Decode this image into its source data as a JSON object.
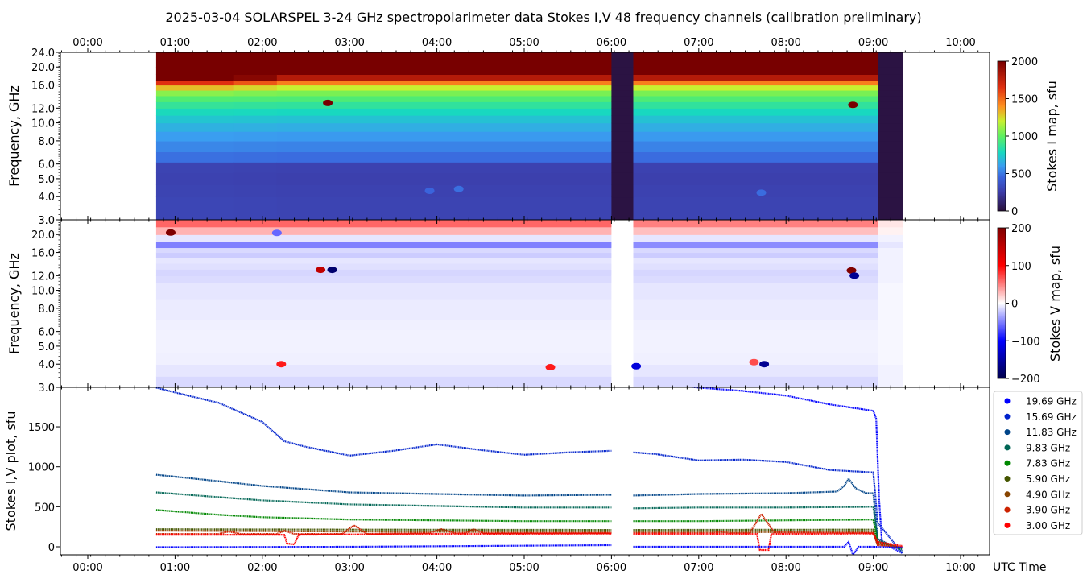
{
  "title": "2025-03-04  SOLARSPEL  3-24 GHz spectropolarimeter data   Stokes I,V   48 frequency channels   (calibration preliminary)",
  "time_axis": {
    "ticks": [
      "00:00",
      "01:00",
      "02:00",
      "03:00",
      "04:00",
      "05:00",
      "06:00",
      "07:00",
      "08:00",
      "09:00",
      "10:00"
    ],
    "label": "UTC Time",
    "range_hours": [
      -0.31,
      10.33
    ]
  },
  "chart_data": [
    {
      "type": "heatmap",
      "id": "stokes_i_map",
      "ylabel": "Frequency, GHz",
      "yscale": "log",
      "ylim": [
        3.0,
        24.0
      ],
      "yticks": [
        "3.0",
        "4.0",
        "5.0",
        "6.0",
        "8.0",
        "10.0",
        "12.0",
        "16.0",
        "20.0",
        "24.0"
      ],
      "colorbar": {
        "label": "Stokes I map, sfu",
        "range": [
          0,
          2000
        ],
        "ticks": [
          "0",
          "500",
          "1000",
          "1500",
          "2000"
        ]
      },
      "frequencies_ghz": [
        3.2,
        3.7,
        4.3,
        5.0,
        5.8,
        6.5,
        7.5,
        8.5,
        9.5,
        10.5,
        11.5,
        12.5,
        13.5,
        14.5,
        15.5,
        16.5,
        17.5,
        19.0,
        21.0,
        23.0
      ],
      "columns": [
        {
          "start": "00:47",
          "values": [
            300,
            300,
            290,
            280,
            290,
            480,
            540,
            600,
            660,
            720,
            790,
            870,
            960,
            1080,
            1300,
            1650,
            2000,
            2000,
            2000,
            2000
          ]
        },
        {
          "start": "01:40",
          "values": [
            295,
            295,
            285,
            275,
            285,
            475,
            535,
            595,
            655,
            715,
            785,
            865,
            955,
            1060,
            1250,
            1550,
            1950,
            2000,
            2000,
            2000
          ]
        },
        {
          "start": "02:10",
          "values": [
            290,
            290,
            280,
            270,
            280,
            470,
            530,
            590,
            650,
            710,
            780,
            860,
            950,
            1050,
            1200,
            1450,
            1800,
            2000,
            2000,
            2000
          ]
        },
        {
          "start": "06:00",
          "values": [
            20,
            20,
            20,
            20,
            20,
            20,
            20,
            20,
            20,
            20,
            20,
            20,
            20,
            20,
            20,
            20,
            20,
            20,
            20,
            20
          ]
        },
        {
          "start": "06:15",
          "values": [
            290,
            290,
            280,
            270,
            280,
            470,
            530,
            590,
            650,
            710,
            780,
            860,
            950,
            1050,
            1200,
            1450,
            1800,
            2000,
            2000,
            2000
          ]
        },
        {
          "start": "09:03",
          "values": [
            20,
            20,
            20,
            20,
            20,
            20,
            20,
            20,
            20,
            20,
            20,
            20,
            20,
            20,
            20,
            20,
            20,
            20,
            20,
            20
          ]
        }
      ],
      "end": "09:20",
      "features": [
        {
          "time": "02:45",
          "freq_ghz": 12.8,
          "value": 2000
        },
        {
          "time": "08:46",
          "freq_ghz": 12.5,
          "value": 2000
        },
        {
          "time": "04:15",
          "freq_ghz": 4.4,
          "value": 480
        },
        {
          "time": "03:55",
          "freq_ghz": 4.3,
          "value": 450
        },
        {
          "time": "07:43",
          "freq_ghz": 4.2,
          "value": 470
        }
      ]
    },
    {
      "type": "heatmap",
      "id": "stokes_v_map",
      "ylabel": "Frequency, GHz",
      "yscale": "log",
      "ylim": [
        3.0,
        24.0
      ],
      "yticks": [
        "3.0",
        "4.0",
        "5.0",
        "6.0",
        "8.0",
        "10.0",
        "12.0",
        "16.0",
        "20.0"
      ],
      "colorbar": {
        "label": "Stokes V map, sfu",
        "range": [
          -200,
          200
        ],
        "ticks": [
          "−200",
          "−100",
          "0",
          "100",
          "200"
        ]
      },
      "frequencies_ghz": [
        3.2,
        3.7,
        4.3,
        5.0,
        5.8,
        6.5,
        7.5,
        8.5,
        9.5,
        10.5,
        11.5,
        12.5,
        13.5,
        14.5,
        15.5,
        16.5,
        17.5,
        19.0,
        21.0,
        23.0
      ],
      "columns": [
        {
          "start": "00:47",
          "values": [
            -15,
            -10,
            -6,
            -5,
            -5,
            -6,
            -8,
            -8,
            -10,
            -10,
            -14,
            -16,
            -12,
            -10,
            -20,
            -15,
            -50,
            -10,
            30,
            60
          ]
        },
        {
          "start": "06:00",
          "values": [
            0,
            0,
            0,
            0,
            0,
            0,
            0,
            0,
            0,
            0,
            0,
            0,
            0,
            0,
            0,
            0,
            0,
            0,
            0,
            0
          ]
        },
        {
          "start": "06:15",
          "values": [
            -15,
            -10,
            -6,
            -5,
            -5,
            -6,
            -8,
            -8,
            -10,
            -10,
            -14,
            -16,
            -12,
            -10,
            -20,
            -15,
            -45,
            -10,
            25,
            50
          ]
        },
        {
          "start": "09:03",
          "values": [
            -5,
            -5,
            -3,
            -3,
            -3,
            -3,
            -3,
            -3,
            -3,
            -3,
            -5,
            -5,
            -5,
            -5,
            -5,
            -5,
            -10,
            -5,
            5,
            10
          ]
        }
      ],
      "end": "09:20",
      "features": [
        {
          "time": "00:57",
          "freq_ghz": 20.5,
          "value": 200
        },
        {
          "time": "02:40",
          "freq_ghz": 12.9,
          "value": 150
        },
        {
          "time": "02:48",
          "freq_ghz": 12.9,
          "value": -180
        },
        {
          "time": "08:45",
          "freq_ghz": 12.8,
          "value": 200
        },
        {
          "time": "08:47",
          "freq_ghz": 12.0,
          "value": -160
        },
        {
          "time": "07:45",
          "freq_ghz": 4.0,
          "value": -160
        },
        {
          "time": "06:17",
          "freq_ghz": 3.9,
          "value": -120
        },
        {
          "time": "05:18",
          "freq_ghz": 3.85,
          "value": 90
        },
        {
          "time": "02:13",
          "freq_ghz": 4.0,
          "value": 90
        },
        {
          "time": "07:38",
          "freq_ghz": 4.1,
          "value": 70
        },
        {
          "time": "02:10",
          "freq_ghz": 20.4,
          "value": -60
        }
      ]
    },
    {
      "type": "scatter",
      "id": "stokes_iv_plot",
      "ylabel": "Stokes I,V plot, sfu",
      "ylim": [
        -100,
        1990
      ],
      "yticks": [
        "0",
        "500",
        "1000",
        "1500"
      ],
      "legend_position": "right",
      "series": [
        {
          "name": "19.69 GHz",
          "color": "#0000ff",
          "points": [
            [
              "06:50",
              2010
            ],
            [
              "07:00",
              1990
            ],
            [
              "07:30",
              1950
            ],
            [
              "08:00",
              1890
            ],
            [
              "08:30",
              1780
            ],
            [
              "09:00",
              1700
            ],
            [
              "09:02",
              1600
            ],
            [
              "09:04",
              600
            ],
            [
              "09:06",
              50
            ],
            [
              "09:20",
              -80
            ]
          ]
        },
        {
          "name": "15.69 GHz",
          "color": "#0022cc",
          "points": [
            [
              "00:47",
              1990
            ],
            [
              "01:00",
              1930
            ],
            [
              "01:30",
              1800
            ],
            [
              "02:00",
              1560
            ],
            [
              "02:15",
              1320
            ],
            [
              "02:30",
              1250
            ],
            [
              "03:00",
              1140
            ],
            [
              "03:30",
              1200
            ],
            [
              "04:00",
              1280
            ],
            [
              "04:30",
              1210
            ],
            [
              "05:00",
              1150
            ],
            [
              "05:30",
              1180
            ],
            [
              "06:00",
              1200
            ],
            [
              "06:15",
              1180
            ],
            [
              "06:30",
              1160
            ],
            [
              "07:00",
              1080
            ],
            [
              "07:30",
              1090
            ],
            [
              "08:00",
              1060
            ],
            [
              "08:30",
              960
            ],
            [
              "09:00",
              930
            ],
            [
              "09:03",
              300
            ],
            [
              "09:20",
              -80
            ]
          ]
        },
        {
          "name": "11.83 GHz",
          "color": "#004488",
          "points": [
            [
              "00:47",
              900
            ],
            [
              "01:30",
              820
            ],
            [
              "02:00",
              760
            ],
            [
              "03:00",
              680
            ],
            [
              "04:00",
              660
            ],
            [
              "05:00",
              640
            ],
            [
              "06:00",
              650
            ],
            [
              "06:15",
              640
            ],
            [
              "07:00",
              660
            ],
            [
              "08:00",
              670
            ],
            [
              "08:35",
              690
            ],
            [
              "08:40",
              760
            ],
            [
              "08:43",
              850
            ],
            [
              "08:48",
              730
            ],
            [
              "08:55",
              670
            ],
            [
              "09:00",
              670
            ],
            [
              "09:03",
              100
            ],
            [
              "09:20",
              -50
            ]
          ]
        },
        {
          "name": "9.83 GHz",
          "color": "#006655",
          "points": [
            [
              "00:47",
              680
            ],
            [
              "01:30",
              620
            ],
            [
              "02:00",
              580
            ],
            [
              "03:00",
              530
            ],
            [
              "04:00",
              510
            ],
            [
              "05:00",
              490
            ],
            [
              "06:00",
              490
            ],
            [
              "06:15",
              480
            ],
            [
              "07:00",
              490
            ],
            [
              "08:00",
              490
            ],
            [
              "09:00",
              500
            ],
            [
              "09:03",
              80
            ],
            [
              "09:20",
              -30
            ]
          ]
        },
        {
          "name": "7.83 GHz",
          "color": "#008800",
          "points": [
            [
              "00:47",
              460
            ],
            [
              "01:30",
              400
            ],
            [
              "02:00",
              370
            ],
            [
              "03:00",
              340
            ],
            [
              "04:00",
              330
            ],
            [
              "05:00",
              320
            ],
            [
              "06:00",
              320
            ],
            [
              "06:15",
              320
            ],
            [
              "07:00",
              320
            ],
            [
              "08:00",
              330
            ],
            [
              "09:00",
              340
            ],
            [
              "09:03",
              60
            ],
            [
              "09:20",
              -20
            ]
          ]
        },
        {
          "name": "5.90 GHz",
          "color": "#445500",
          "points": [
            [
              "00:47",
              220
            ],
            [
              "03:00",
              215
            ],
            [
              "06:00",
              210
            ],
            [
              "06:15",
              210
            ],
            [
              "09:00",
              215
            ],
            [
              "09:03",
              40
            ],
            [
              "09:20",
              -10
            ]
          ]
        },
        {
          "name": "4.90 GHz",
          "color": "#884400",
          "points": [
            [
              "00:47",
              200
            ],
            [
              "03:00",
              190
            ],
            [
              "06:00",
              180
            ],
            [
              "06:15",
              180
            ],
            [
              "09:00",
              185
            ],
            [
              "09:03",
              30
            ],
            [
              "09:20",
              -10
            ]
          ]
        },
        {
          "name": "3.90 GHz",
          "color": "#cc2200",
          "points": [
            [
              "00:47",
              160
            ],
            [
              "01:30",
              160
            ],
            [
              "01:37",
              190
            ],
            [
              "01:45",
              160
            ],
            [
              "02:10",
              160
            ],
            [
              "02:15",
              200
            ],
            [
              "02:22",
              160
            ],
            [
              "02:55",
              160
            ],
            [
              "03:03",
              270
            ],
            [
              "03:12",
              160
            ],
            [
              "03:55",
              170
            ],
            [
              "04:03",
              220
            ],
            [
              "04:12",
              170
            ],
            [
              "04:20",
              170
            ],
            [
              "04:25",
              220
            ],
            [
              "04:32",
              170
            ],
            [
              "06:00",
              170
            ],
            [
              "06:15",
              170
            ],
            [
              "07:10",
              170
            ],
            [
              "07:15",
              190
            ],
            [
              "07:22",
              170
            ],
            [
              "07:35",
              170
            ],
            [
              "07:43",
              410
            ],
            [
              "07:52",
              180
            ],
            [
              "09:00",
              170
            ],
            [
              "09:03",
              20
            ],
            [
              "09:20",
              0
            ]
          ]
        },
        {
          "name": "3.00 GHz",
          "color": "#ff0000",
          "points": [
            [
              "00:47",
              150
            ],
            [
              "02:00",
              150
            ],
            [
              "02:15",
              150
            ],
            [
              "02:17",
              40
            ],
            [
              "02:22",
              30
            ],
            [
              "02:25",
              150
            ],
            [
              "04:00",
              160
            ],
            [
              "06:00",
              165
            ],
            [
              "06:15",
              160
            ],
            [
              "07:40",
              160
            ],
            [
              "07:42",
              -40
            ],
            [
              "07:48",
              -40
            ],
            [
              "07:50",
              160
            ],
            [
              "09:00",
              165
            ],
            [
              "09:03",
              60
            ],
            [
              "09:20",
              10
            ]
          ]
        },
        {
          "color": "#0000ff",
          "points": [
            [
              "00:47",
              -5
            ],
            [
              "03:00",
              0
            ],
            [
              "06:00",
              20
            ],
            [
              "06:15",
              0
            ],
            [
              "08:40",
              0
            ],
            [
              "08:43",
              60
            ],
            [
              "08:46",
              -100
            ],
            [
              "08:50",
              0
            ],
            [
              "09:00",
              0
            ],
            [
              "09:20",
              -10
            ]
          ]
        }
      ]
    }
  ]
}
